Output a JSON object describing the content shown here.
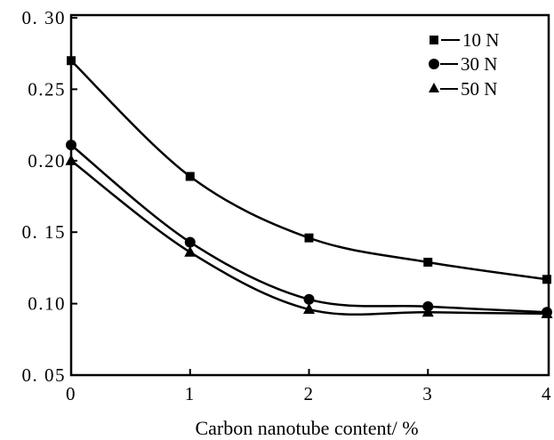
{
  "chart_data": {
    "type": "line",
    "title": "",
    "xlabel": "Carbon nanotube content/ %",
    "ylabel": "",
    "x": [
      0,
      1,
      2,
      3,
      4
    ],
    "xlim": [
      0,
      4
    ],
    "ylim": [
      0.05,
      0.3
    ],
    "xticks": [
      0,
      1,
      2,
      3,
      4
    ],
    "xticklabels": [
      "0",
      "1",
      "2",
      "3",
      "4"
    ],
    "yticks": [
      0.05,
      0.1,
      0.15,
      0.2,
      0.25,
      0.3
    ],
    "yticklabels": [
      "0. 05",
      "0.10",
      "0. 15",
      "0.20",
      "0.25",
      "0. 30"
    ],
    "grid": false,
    "legend": "top-right",
    "color": "#000000",
    "series": [
      {
        "name": "10 N",
        "marker": "square",
        "values": [
          0.27,
          0.189,
          0.146,
          0.129,
          0.117
        ]
      },
      {
        "name": "30 N",
        "marker": "circle",
        "values": [
          0.211,
          0.143,
          0.103,
          0.098,
          0.094
        ]
      },
      {
        "name": "50 N",
        "marker": "triangle",
        "values": [
          0.2,
          0.136,
          0.096,
          0.094,
          0.093
        ]
      }
    ]
  }
}
